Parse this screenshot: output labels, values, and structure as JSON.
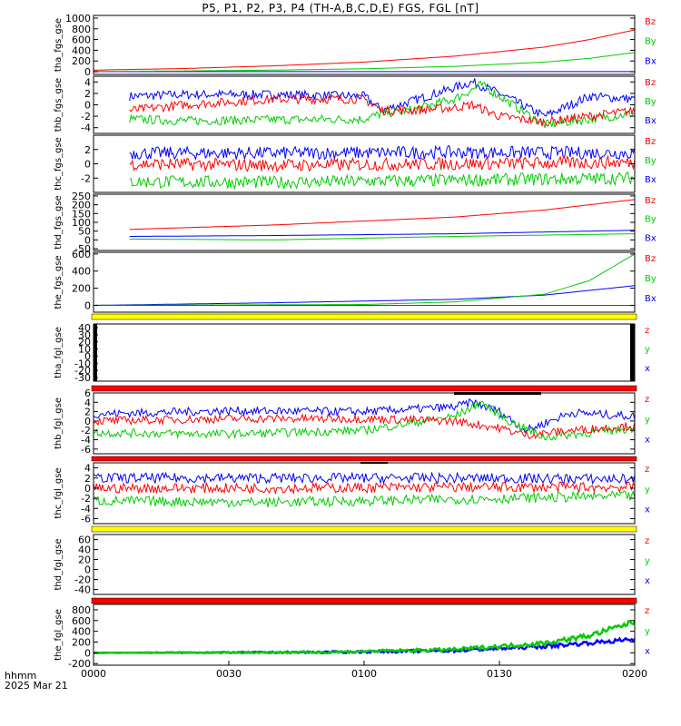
{
  "title": "P5, P1, P2, P3, P4 (TH-A,B,C,D,E) FGS, FGL [nT]",
  "footer": {
    "hhmm": "hhmm",
    "date": "2025 Mar 21"
  },
  "colors": {
    "x": "#0000ff",
    "y": "#00cc00",
    "z": "#ff0000",
    "bar_yellow": "#ffff00",
    "bar_red": "#ff0000"
  },
  "chart_data": {
    "type": "line",
    "x_ticks": [
      "0000",
      "0030",
      "0100",
      "0130",
      "0200"
    ],
    "x_range_minutes": [
      0,
      120
    ],
    "panels": [
      {
        "name": "tha_fgs_gse",
        "ylabel": "tha_fgs_gse",
        "ylim": [
          -50,
          1050
        ],
        "yticks": [
          "1000",
          "800",
          "600",
          "400",
          "200",
          "0"
        ],
        "ytick_values": [
          1000,
          800,
          600,
          400,
          200,
          0
        ],
        "legend": [
          "Bz",
          "By",
          "Bx"
        ],
        "series": [
          {
            "comp": "Bx",
            "color": "#0000ff",
            "x": [
              0,
              120
            ],
            "y": [
              2,
              2
            ]
          },
          {
            "comp": "By",
            "color": "#00cc00",
            "x": [
              0,
              20,
              40,
              60,
              80,
              100,
              110,
              120
            ],
            "y": [
              5,
              15,
              30,
              55,
              100,
              180,
              250,
              360
            ]
          },
          {
            "comp": "Bz",
            "color": "#ff0000",
            "x": [
              0,
              20,
              40,
              60,
              80,
              100,
              110,
              120
            ],
            "y": [
              30,
              60,
              110,
              180,
              290,
              460,
              600,
              780
            ]
          }
        ]
      },
      {
        "name": "thb_fgs_gse",
        "ylabel": "thb_fgs_gse",
        "ylim": [
          -5,
          5
        ],
        "yticks": [
          "4",
          "2",
          "0",
          "-2",
          "-4"
        ],
        "ytick_values": [
          4,
          2,
          0,
          -2,
          -4
        ],
        "legend": [
          "Bz",
          "By",
          "Bx"
        ],
        "x_start": 8,
        "noise": 0.8,
        "series": [
          {
            "comp": "Bx",
            "color": "#0000ff",
            "x": [
              8,
              20,
              40,
              60,
              64,
              70,
              80,
              84,
              90,
              100,
              110,
              120
            ],
            "y": [
              1.5,
              1.8,
              1.8,
              1.5,
              -1,
              0.5,
              3,
              4,
              2,
              -2,
              1.5,
              1
            ]
          },
          {
            "comp": "By",
            "color": "#00cc00",
            "x": [
              8,
              20,
              40,
              60,
              64,
              70,
              80,
              86,
              90,
              100,
              110,
              120
            ],
            "y": [
              -2.5,
              -2.8,
              -2.6,
              -2.5,
              -1.5,
              -1,
              1,
              3.5,
              1.5,
              -3.5,
              -2.5,
              -1.5
            ]
          },
          {
            "comp": "Bz",
            "color": "#ff0000",
            "x": [
              8,
              20,
              40,
              60,
              64,
              70,
              80,
              84,
              90,
              100,
              110,
              120
            ],
            "y": [
              -1,
              0,
              1,
              1,
              -1,
              -1,
              -0.5,
              0,
              -2,
              -3,
              -2,
              -1
            ]
          }
        ]
      },
      {
        "name": "thc_fgs_gse",
        "ylabel": "thc_fgs_gse",
        "ylim": [
          -4,
          4
        ],
        "yticks": [
          "2",
          "0",
          "-2"
        ],
        "ytick_values": [
          2,
          0,
          -2
        ],
        "legend": [
          "Bz",
          "By",
          "Bx"
        ],
        "x_start": 8,
        "noise": 0.9,
        "series": [
          {
            "comp": "Bx",
            "color": "#0000ff",
            "x": [
              8,
              40,
              80,
              120
            ],
            "y": [
              1.5,
              1.5,
              1.6,
              1.5
            ]
          },
          {
            "comp": "By",
            "color": "#00cc00",
            "x": [
              8,
              40,
              80,
              120
            ],
            "y": [
              -2.5,
              -2.6,
              -2.3,
              -2.0
            ]
          },
          {
            "comp": "Bz",
            "color": "#ff0000",
            "x": [
              8,
              40,
              80,
              120
            ],
            "y": [
              0,
              -0.2,
              0,
              0.2
            ]
          }
        ]
      },
      {
        "name": "thd_fgs_gse",
        "ylabel": "thd_fgs_gse",
        "ylim": [
          -60,
          260
        ],
        "yticks": [
          "250",
          "200",
          "150",
          "100",
          "50",
          "0",
          "-50"
        ],
        "ytick_values": [
          250,
          200,
          150,
          100,
          50,
          0,
          -50
        ],
        "legend": [
          "Bz",
          "By",
          "Bx"
        ],
        "x_start": 8,
        "series": [
          {
            "comp": "Bx",
            "color": "#0000ff",
            "x": [
              8,
              40,
              80,
              120
            ],
            "y": [
              20,
              25,
              35,
              55
            ]
          },
          {
            "comp": "By",
            "color": "#00cc00",
            "x": [
              8,
              40,
              80,
              120
            ],
            "y": [
              5,
              0,
              20,
              35
            ]
          },
          {
            "comp": "Bz",
            "color": "#ff0000",
            "x": [
              8,
              40,
              80,
              100,
              120
            ],
            "y": [
              60,
              85,
              130,
              170,
              230
            ]
          }
        ]
      },
      {
        "name": "the_fgs_gse",
        "ylabel": "the_fgs_gse",
        "ylim": [
          -80,
          620
        ],
        "yticks": [
          "600",
          "400",
          "200",
          "0"
        ],
        "ytick_values": [
          600,
          400,
          200,
          0
        ],
        "legend": [
          "Bz",
          "By",
          "Bx"
        ],
        "series": [
          {
            "comp": "Bx",
            "color": "#0000ff",
            "x": [
              0,
              40,
              80,
              100,
              120
            ],
            "y": [
              0,
              30,
              70,
              120,
              230
            ]
          },
          {
            "comp": "By",
            "color": "#00cc00",
            "x": [
              0,
              60,
              80,
              100,
              110,
              120
            ],
            "y": [
              0,
              10,
              40,
              130,
              290,
              600
            ]
          },
          {
            "comp": "Bz",
            "color": "#ff0000",
            "x": [
              0,
              120
            ],
            "y": [
              0,
              0
            ]
          }
        ]
      },
      {
        "name": "tha_fgl_gse",
        "ylabel": "tha_fgl_gse",
        "ylim": [
          -35,
          45
        ],
        "yticks": [
          "40",
          "30",
          "20",
          "10",
          "0",
          "-10",
          "-20",
          "-30"
        ],
        "ytick_values": [
          40,
          30,
          20,
          10,
          0,
          -10,
          -20,
          -30
        ],
        "legend": [
          "z",
          "y",
          "x"
        ],
        "series": []
      },
      {
        "name": "thb_fgl_gse",
        "ylabel": "thb_fgl_gse",
        "ylim": [
          -7,
          6
        ],
        "yticks": [
          "6",
          "4",
          "2",
          "0",
          "-2",
          "-4",
          "-6"
        ],
        "ytick_values": [
          6,
          4,
          2,
          0,
          -2,
          -4,
          -6
        ],
        "legend": [
          "z",
          "y",
          "x"
        ],
        "noise": 0.9,
        "series": [
          {
            "comp": "Bx",
            "color": "#0000ff",
            "x": [
              0,
              30,
              60,
              80,
              84,
              90,
              96,
              106,
              120
            ],
            "y": [
              1.5,
              2.2,
              2,
              3,
              4,
              2,
              -2,
              1.8,
              1
            ]
          },
          {
            "comp": "By",
            "color": "#00cc00",
            "x": [
              0,
              30,
              60,
              80,
              86,
              92,
              100,
              120
            ],
            "y": [
              -2.5,
              -2.8,
              -2,
              1,
              4,
              0,
              -3.5,
              -1.5
            ]
          },
          {
            "comp": "Bz",
            "color": "#ff0000",
            "x": [
              0,
              30,
              60,
              80,
              90,
              96,
              106,
              120
            ],
            "y": [
              0,
              0.5,
              0.5,
              0,
              -1.5,
              -3,
              -2,
              -1
            ]
          }
        ]
      },
      {
        "name": "thc_fgl_gse",
        "ylabel": "thc_fgl_gse",
        "ylim": [
          -7,
          5
        ],
        "yticks": [
          "4",
          "2",
          "0",
          "-2",
          "-4",
          "-6"
        ],
        "ytick_values": [
          4,
          2,
          0,
          -2,
          -4,
          -6
        ],
        "legend": [
          "z",
          "y",
          "x"
        ],
        "noise": 1.0,
        "series": [
          {
            "comp": "Bx",
            "color": "#0000ff",
            "x": [
              0,
              40,
              80,
              120
            ],
            "y": [
              2,
              2,
              2,
              1.8
            ]
          },
          {
            "comp": "By",
            "color": "#00cc00",
            "x": [
              0,
              40,
              80,
              120
            ],
            "y": [
              -2.5,
              -2.8,
              -2.2,
              -1.5
            ]
          },
          {
            "comp": "Bz",
            "color": "#ff0000",
            "x": [
              0,
              40,
              80,
              120
            ],
            "y": [
              0,
              0,
              0.2,
              0.2
            ]
          }
        ]
      },
      {
        "name": "thd_fgl_gse",
        "ylabel": "thd_fgl_gse",
        "ylim": [
          -50,
          70
        ],
        "yticks": [
          "60",
          "40",
          "20",
          "0",
          "-20",
          "-40"
        ],
        "ytick_values": [
          60,
          40,
          20,
          0,
          -20,
          -40
        ],
        "legend": [
          "z",
          "y",
          "x"
        ],
        "series": []
      },
      {
        "name": "the_fgl_gse",
        "ylabel": "the_fgl_gse",
        "ylim": [
          -230,
          900
        ],
        "yticks": [
          "800",
          "600",
          "400",
          "200",
          "0",
          "-200"
        ],
        "ytick_values": [
          800,
          600,
          400,
          200,
          0,
          -200
        ],
        "legend": [
          "z",
          "y",
          "x"
        ],
        "series": [
          {
            "comp": "Bx",
            "color": "#0000ff",
            "x": [
              0,
              50,
              80,
              100,
              120
            ],
            "y": [
              0,
              10,
              40,
              120,
              250
            ],
            "band": 80
          },
          {
            "comp": "By",
            "color": "#00cc00",
            "x": [
              0,
              50,
              80,
              100,
              110,
              120
            ],
            "y": [
              0,
              10,
              60,
              180,
              320,
              580
            ],
            "band": 100
          }
        ]
      }
    ]
  }
}
